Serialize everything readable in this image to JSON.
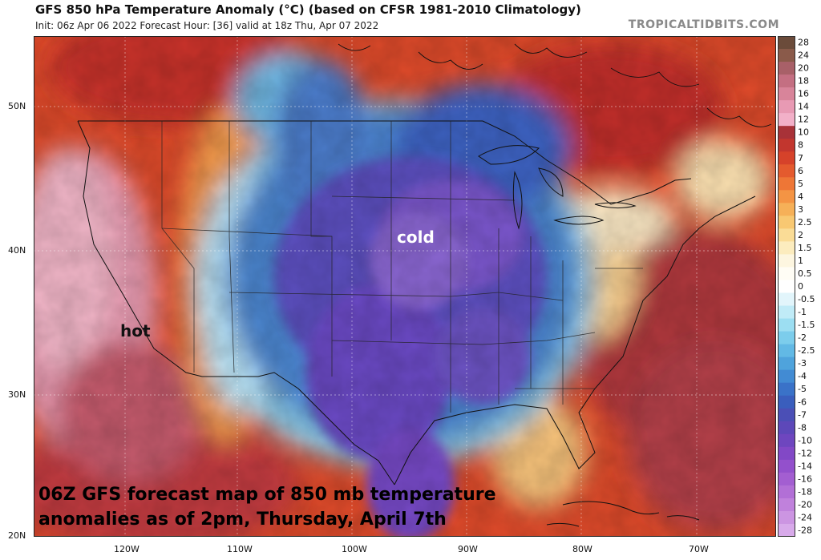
{
  "title": "GFS 850 hPa Temperature Anomaly (°C) (based on CFSR 1981-2010 Climatology)",
  "subtitle": "Init: 06z Apr 06 2022   Forecast Hour: [36]   valid at 18z Thu, Apr 07 2022",
  "watermark": "TROPICALTIDBITS.COM",
  "lat_labels": [
    "50N",
    "40N",
    "30N",
    "20N"
  ],
  "lon_labels": [
    "120W",
    "110W",
    "100W",
    "90W",
    "80W",
    "70W"
  ],
  "annotations": {
    "hot": "hot",
    "cold": "cold"
  },
  "caption": {
    "line1": "06Z GFS forecast map of 850 mb temperature",
    "line2": "anomalies as of 2pm, Thursday, April 7th"
  },
  "colorbar": {
    "labels": [
      "28",
      "24",
      "20",
      "18",
      "16",
      "14",
      "12",
      "10",
      "8",
      "7",
      "6",
      "5",
      "4",
      "3",
      "2.5",
      "2",
      "1.5",
      "1",
      "0.5",
      "0",
      "-0.5",
      "-1",
      "-1.5",
      "-2",
      "-2.5",
      "-3",
      "-4",
      "-5",
      "-6",
      "-7",
      "-8",
      "-10",
      "-12",
      "-14",
      "-16",
      "-18",
      "-20",
      "-24",
      "-28"
    ],
    "colors": [
      "#6b4b3a",
      "#8a5a4a",
      "#a86068",
      "#c46f82",
      "#d8849a",
      "#e89ab4",
      "#f2b0c8",
      "#a83238",
      "#c2362e",
      "#d6422a",
      "#e45a2e",
      "#ee7636",
      "#f49444",
      "#f6b058",
      "#f8c872",
      "#fadc96",
      "#fcecbe",
      "#fdf6e0",
      "#fffdf5",
      "#ffffff",
      "#e2f5fb",
      "#c0ebf7",
      "#9cdef2",
      "#7ccdec",
      "#62b9e5",
      "#4fa3dc",
      "#428bd3",
      "#3a72c8",
      "#3a5ebd",
      "#4b4fb6",
      "#5d48b9",
      "#6e46bf",
      "#8248c6",
      "#9350cc",
      "#a35ed1",
      "#b26fd6",
      "#c081dc",
      "#cc95e2",
      "#d8aaea"
    ]
  },
  "colors": {
    "hot": "#e05a34",
    "cold": "#3c55c4"
  }
}
